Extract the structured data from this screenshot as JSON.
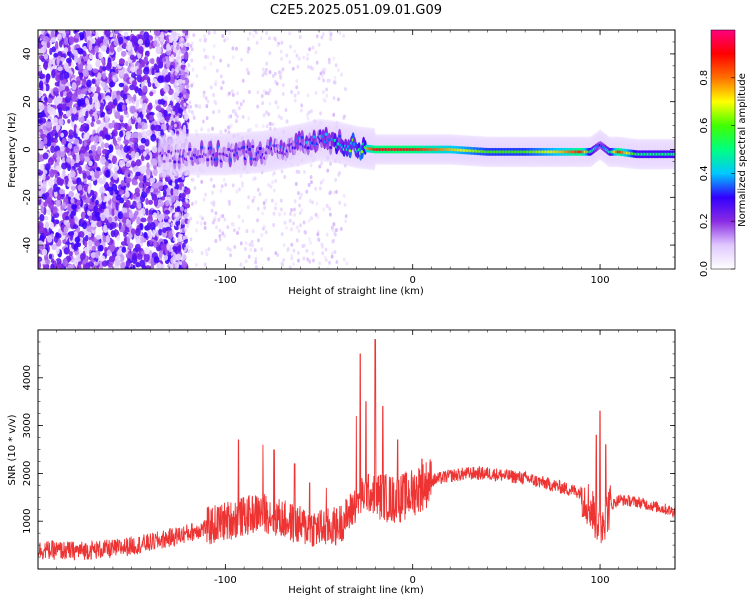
{
  "title": "C2E5.2025.051.09.01.G09",
  "chart_data": [
    {
      "type": "heatmap",
      "xlabel": "Height of straight line (km)",
      "ylabel": "Frequency (Hz)",
      "xlim": [
        -200,
        140
      ],
      "ylim": [
        -50,
        50
      ],
      "xticks": [
        -100,
        0,
        100
      ],
      "yticks": [
        -40,
        -20,
        0,
        20,
        40
      ],
      "colorbar": {
        "label": "Normalized spectral amplitude",
        "range": [
          0,
          1
        ],
        "ticks": [
          0.0,
          0.2,
          0.4,
          0.6,
          0.8
        ],
        "tick_labels": [
          "0.0",
          "0.2",
          "0.4",
          "0.6",
          "0.8"
        ],
        "colors": [
          "#ffffff",
          "#e0c8ff",
          "#8a2be2",
          "#3200ff",
          "#00c8ff",
          "#00ff80",
          "#40ff00",
          "#ffff00",
          "#ff7000",
          "#ff0000",
          "#ff0080"
        ]
      },
      "ridge": {
        "x": [
          -135,
          -120,
          -100,
          -80,
          -60,
          -50,
          -40,
          -30,
          -20,
          -10,
          0,
          20,
          40,
          60,
          80,
          90,
          95,
          100,
          105,
          110,
          120,
          140
        ],
        "freq": [
          -3,
          -2,
          -2,
          -1,
          2,
          4,
          3,
          1,
          0,
          0,
          0,
          0,
          -1,
          -1,
          -1,
          -1,
          -1,
          2,
          -1,
          -1,
          -2,
          -2
        ],
        "amplitude": [
          0.25,
          0.28,
          0.3,
          0.3,
          0.32,
          0.38,
          0.45,
          0.6,
          0.9,
          0.92,
          0.9,
          0.75,
          0.6,
          0.6,
          0.75,
          0.9,
          0.5,
          0.3,
          0.45,
          0.9,
          0.5,
          0.5
        ]
      }
    },
    {
      "type": "line",
      "xlabel": "Height of straight line (km)",
      "ylabel": "SNR (10 * v/v)",
      "xlim": [
        -200,
        140
      ],
      "ylim": [
        0,
        5000
      ],
      "xticks": [
        -100,
        0,
        100
      ],
      "yticks": [
        1000,
        2000,
        3000,
        4000
      ],
      "line_color": "#ee3333",
      "envelope": {
        "x": [
          -200,
          -180,
          -160,
          -140,
          -120,
          -100,
          -90,
          -80,
          -70,
          -60,
          -50,
          -40,
          -35,
          -30,
          -25,
          -20,
          -15,
          -10,
          -5,
          0,
          10,
          20,
          30,
          40,
          50,
          60,
          70,
          80,
          90,
          95,
          100,
          105,
          110,
          120,
          130,
          140
        ],
        "y": [
          400,
          380,
          420,
          550,
          750,
          1000,
          1100,
          1200,
          1050,
          900,
          850,
          900,
          1100,
          1400,
          1600,
          1550,
          1500,
          1450,
          1500,
          1600,
          1850,
          1950,
          2000,
          2000,
          1950,
          1900,
          1800,
          1700,
          1600,
          1300,
          900,
          1300,
          1450,
          1400,
          1300,
          1200
        ]
      },
      "spikes": [
        {
          "x": -93,
          "y": 2700
        },
        {
          "x": -80,
          "y": 2600
        },
        {
          "x": -74,
          "y": 2500
        },
        {
          "x": -63,
          "y": 2200
        },
        {
          "x": -55,
          "y": 1800
        },
        {
          "x": -46,
          "y": 1700
        },
        {
          "x": -30,
          "y": 3200
        },
        {
          "x": -28,
          "y": 4500
        },
        {
          "x": -25,
          "y": 3500
        },
        {
          "x": -20,
          "y": 4800
        },
        {
          "x": -16,
          "y": 3400
        },
        {
          "x": -8,
          "y": 2700
        },
        {
          "x": 5,
          "y": 2300
        },
        {
          "x": 98,
          "y": 2800
        },
        {
          "x": 100,
          "y": 3300
        },
        {
          "x": 103,
          "y": 2600
        }
      ]
    }
  ]
}
